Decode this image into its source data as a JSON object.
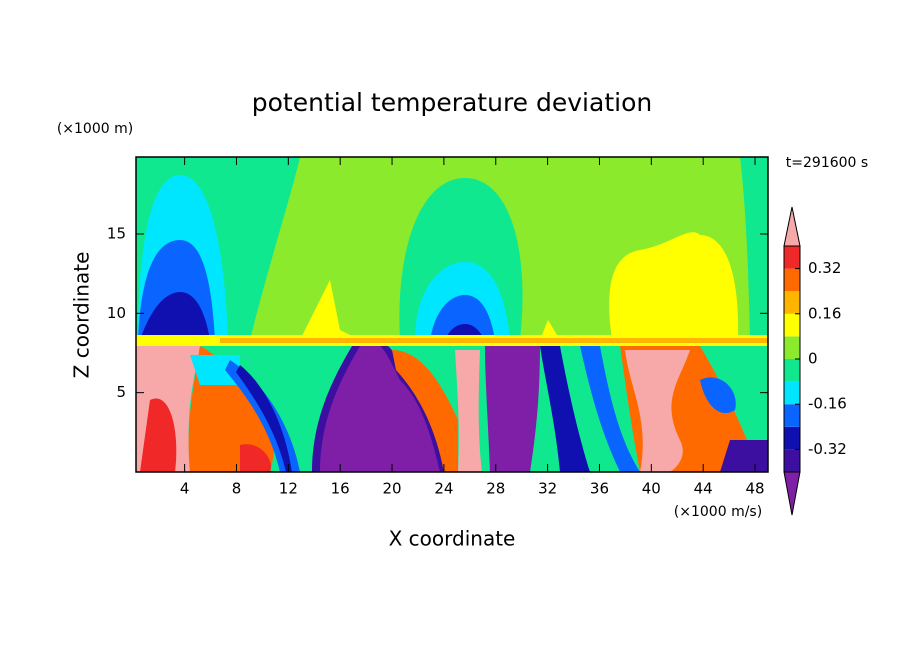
{
  "chart_data": {
    "type": "contour",
    "title": "potential temperature deviation",
    "x_label": "X coordinate",
    "y_label": "Z coordinate",
    "x_unit": "(×1000 m/s)",
    "y_unit": "(×1000 m)",
    "time_label": "t=291600 s",
    "xlim": [
      0.25,
      49.0
    ],
    "ylim": [
      0,
      19.85
    ],
    "xticks": [
      4,
      8,
      12,
      16,
      20,
      24,
      28,
      32,
      36,
      40,
      44,
      48
    ],
    "yticks": [
      5,
      10,
      15
    ],
    "colorbar": {
      "levels": [
        -0.4,
        -0.32,
        -0.24,
        -0.16,
        -0.08,
        0,
        0.08,
        0.16,
        0.24,
        0.32,
        0.4
      ],
      "colors": [
        "#7f1fa8",
        "#3c0fa0",
        "#1010b0",
        "#0a64ff",
        "#00e6ff",
        "#10e890",
        "#8cea2c",
        "#ffff00",
        "#ffb400",
        "#ff6a00",
        "#f02828",
        "#f7a8a8"
      ],
      "ticks": [
        -0.32,
        -0.16,
        0,
        0.16,
        0.32
      ]
    }
  }
}
